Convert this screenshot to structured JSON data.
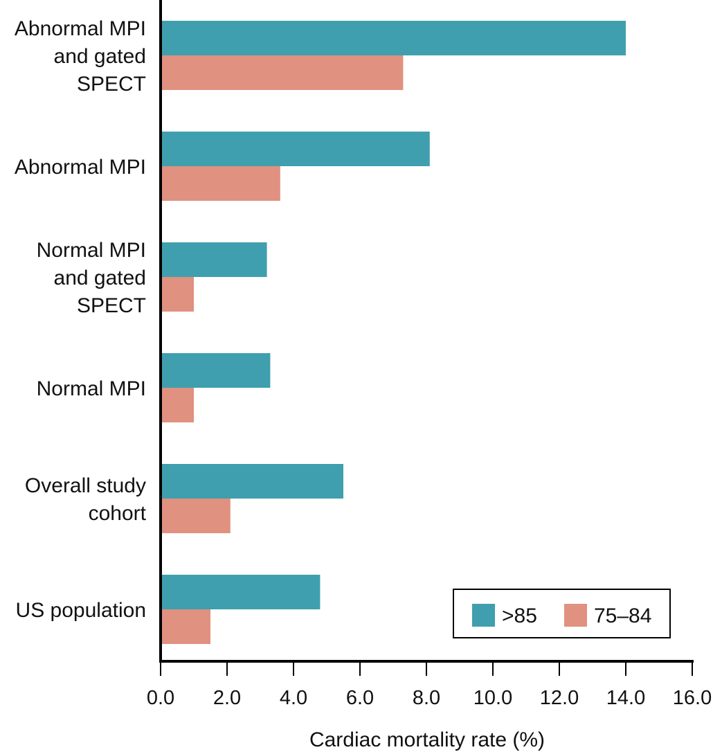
{
  "chart_data": {
    "type": "bar",
    "orientation": "horizontal",
    "title": "",
    "xlabel": "Cardiac mortality rate (%)",
    "ylabel": "",
    "xlim": [
      0,
      16
    ],
    "x_ticks": [
      "0.0",
      "2.0",
      "4.0",
      "6.0",
      "8.0",
      "10.0",
      "12.0",
      "14.0",
      "16.0"
    ],
    "grid": false,
    "categories": [
      [
        "Abnormal MPI",
        "and gated",
        "SPECT"
      ],
      [
        "Abnormal MPI"
      ],
      [
        "Normal MPI",
        "and gated",
        "SPECT"
      ],
      [
        "Normal MPI"
      ],
      [
        "Overall study",
        "cohort"
      ],
      [
        "US population"
      ]
    ],
    "series": [
      {
        "name": ">85",
        "color": "#3f9fae",
        "values": [
          14.0,
          8.1,
          3.2,
          3.3,
          5.5,
          4.8
        ]
      },
      {
        "name": "75–84",
        "color": "#e0917f",
        "values": [
          7.3,
          3.6,
          1.0,
          1.0,
          2.1,
          1.5
        ]
      }
    ],
    "legend": {
      "position": "bottom-right",
      "entries": [
        ">85",
        "75–84"
      ]
    }
  }
}
